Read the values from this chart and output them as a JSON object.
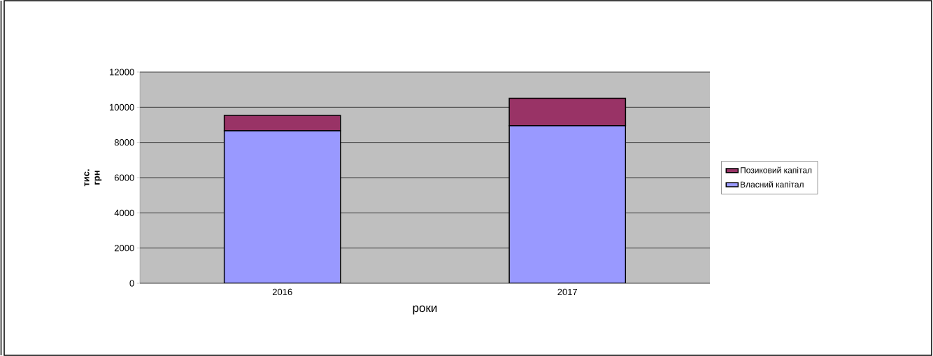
{
  "chart_data": {
    "type": "bar",
    "stacked": true,
    "categories": [
      "2016",
      "2017"
    ],
    "series": [
      {
        "name": "Власний капітал",
        "color": "#9999ff",
        "values": [
          8660,
          8950
        ]
      },
      {
        "name": "Позиковий капітал",
        "color": "#993366",
        "values": [
          880,
          1560
        ]
      }
    ],
    "xlabel": "роки",
    "ylabel": "тис. грн",
    "ylim": [
      0,
      12000
    ],
    "yticks": [
      0,
      2000,
      4000,
      6000,
      8000,
      10000,
      12000
    ],
    "grid": "y",
    "legend": "right"
  }
}
